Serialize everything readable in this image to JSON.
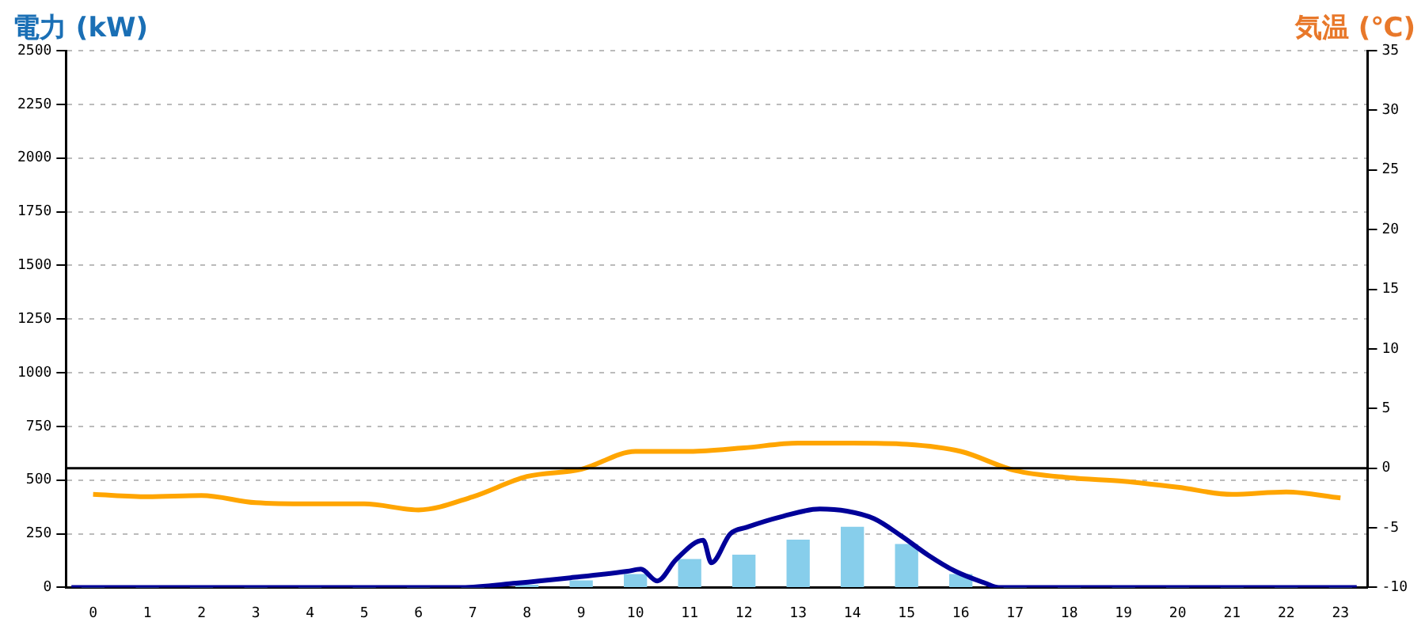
{
  "chart_data": {
    "type": "bar",
    "ylabel": "電力 (kW)",
    "y2label": "気温 (℃)",
    "x": [
      0,
      1,
      2,
      3,
      4,
      5,
      6,
      7,
      8,
      9,
      10,
      11,
      12,
      13,
      14,
      15,
      16,
      17,
      18,
      19,
      20,
      21,
      22,
      23
    ],
    "series": [
      {
        "color": "#87ceeb",
        "values": [
          0,
          0,
          0,
          0,
          0,
          0,
          0,
          0,
          10,
          30,
          60,
          130,
          150,
          220,
          280,
          200,
          60,
          0,
          0,
          0,
          0,
          0,
          0,
          0
        ]
      },
      {
        "type": "line",
        "color": "#000099",
        "x": [
          -0.4,
          6.8,
          7.8,
          8.8,
          9.85,
          10.1,
          10.4,
          10.75,
          11.25,
          11.4,
          11.75,
          12.05,
          12.7,
          13.4,
          13.9,
          14.4,
          14.9,
          15.4,
          15.9,
          16.45,
          16.7,
          23.3
        ],
        "values": [
          0,
          0,
          20,
          45,
          75,
          85,
          30,
          130,
          220,
          115,
          250,
          280,
          330,
          365,
          355,
          320,
          240,
          150,
          75,
          20,
          0,
          0
        ]
      },
      {
        "type": "line",
        "axis": "y2",
        "color": "#ffa500",
        "values": [
          -2.2,
          -2.4,
          -2.3,
          -2.9,
          -3,
          -3,
          -3.5,
          -2.4,
          -0.7,
          -0.1,
          1.4,
          1.4,
          1.7,
          2.1,
          2.1,
          2,
          1.4,
          -0.2,
          -0.8,
          -1.1,
          -1.6,
          -2.2,
          -2,
          -2.5
        ]
      }
    ],
    "xlim": [
      -0.5,
      23.5
    ],
    "xticks": [
      0,
      1,
      2,
      3,
      4,
      5,
      6,
      7,
      8,
      9,
      10,
      11,
      12,
      13,
      14,
      15,
      16,
      17,
      18,
      19,
      20,
      21,
      22,
      23
    ],
    "ylim": [
      0,
      2500
    ],
    "yticks": [
      0,
      250,
      500,
      750,
      1000,
      1250,
      1500,
      1750,
      2000,
      2250,
      2500
    ],
    "y2lim": [
      -10,
      35
    ],
    "y2ticks": [
      -10,
      -5,
      0,
      5,
      10,
      15,
      20,
      25,
      30,
      35
    ],
    "ref_lines": [
      {
        "axis": "y2",
        "value": 0,
        "color": "#000000"
      }
    ],
    "grid": "y",
    "marker": "none",
    "line_style": "solid"
  }
}
